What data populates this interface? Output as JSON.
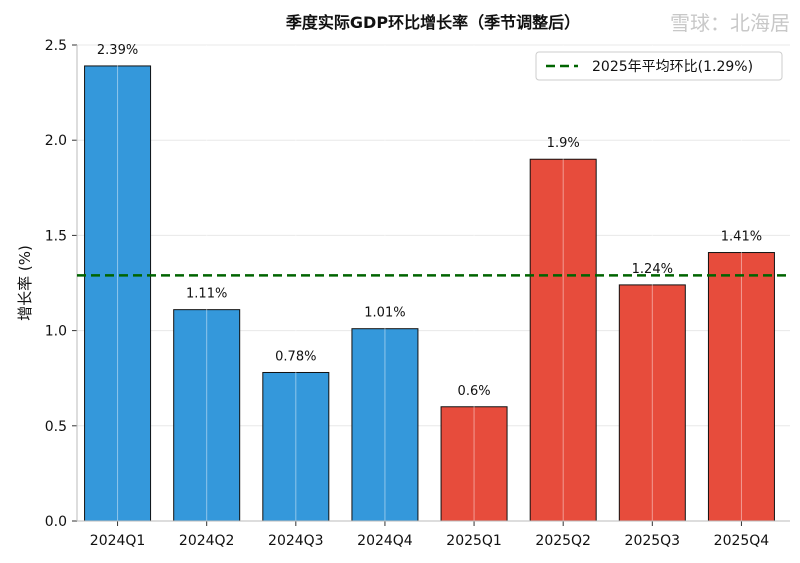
{
  "chart_data": {
    "type": "bar",
    "title": "季度实际GDP环比增长率（季节调整后）",
    "xlabel": "",
    "ylabel": "增长率 (%)",
    "ylim": [
      0,
      2.5
    ],
    "yticks": [
      "0.0",
      "0.5",
      "1.0",
      "1.5",
      "2.0",
      "2.5"
    ],
    "grid": true,
    "categories": [
      "2024Q1",
      "2024Q2",
      "2024Q3",
      "2024Q4",
      "2025Q1",
      "2025Q2",
      "2025Q3",
      "2025Q4"
    ],
    "values": [
      2.39,
      1.11,
      0.78,
      1.01,
      0.6,
      1.9,
      1.24,
      1.41
    ],
    "data_labels": [
      "2.39%",
      "1.11%",
      "0.78%",
      "1.01%",
      "0.6%",
      "1.9%",
      "1.24%",
      "1.41%"
    ],
    "bar_colors": [
      "#3498db",
      "#3498db",
      "#3498db",
      "#3498db",
      "#e74c3c",
      "#e74c3c",
      "#e74c3c",
      "#e74c3c"
    ],
    "reference_line": {
      "value": 1.29,
      "label": "2025年平均环比(1.29%)",
      "color": "#006400",
      "style": "dashed"
    },
    "legend_position": "top-right"
  },
  "watermark": "雪球：北海居"
}
